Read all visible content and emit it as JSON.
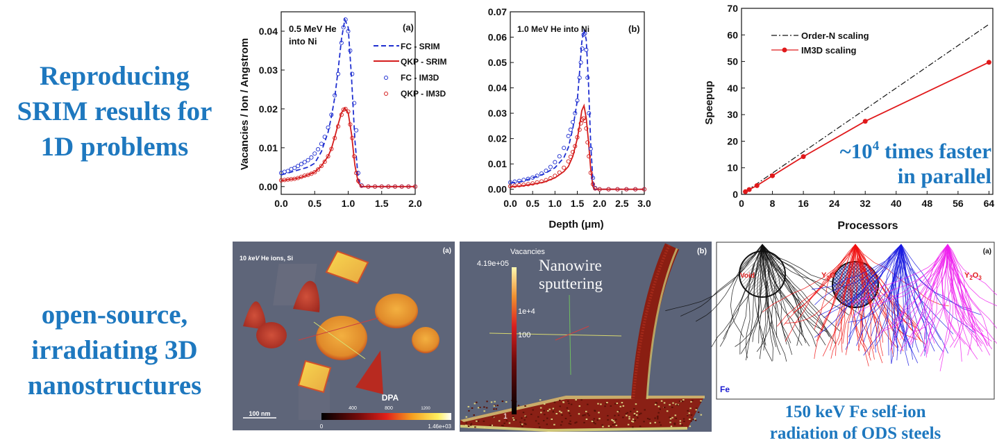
{
  "left_text": {
    "top": [
      "Reproducing",
      "SRIM results for",
      "1D problems"
    ],
    "bottom": [
      "open-source,",
      "irradiating 3D",
      "nanostructures"
    ]
  },
  "colors": {
    "title_blue": "#1e78bf",
    "fc": "#1f2fd0",
    "qkp": "#d41c1c",
    "order_n": "#111111",
    "im3d": "#e0191b",
    "render_bg": "#5e6579"
  },
  "chart_data": [
    {
      "type": "line",
      "panel": "(a)",
      "annotation": [
        "0.5 MeV He",
        "into Ni"
      ],
      "ylabel": "Vacancies / Ion / Angstrom",
      "xlabel": "",
      "xlim": [
        0,
        2.0
      ],
      "ylim": [
        -0.002,
        0.045
      ],
      "xticks": [
        "0.0",
        "0.5",
        "1.0",
        "1.5",
        "2.0"
      ],
      "yticks": [
        "0.00",
        "0.01",
        "0.02",
        "0.03",
        "0.04"
      ],
      "legend_placement": "top-right",
      "series": [
        {
          "name": "FC - SRIM",
          "style": "dashed",
          "color": "#1f2fd0",
          "x": [
            0,
            0.1,
            0.2,
            0.3,
            0.4,
            0.5,
            0.6,
            0.7,
            0.75,
            0.8,
            0.85,
            0.9,
            0.95,
            1.0,
            1.05,
            1.1,
            1.15,
            1.2,
            1.5,
            2.0
          ],
          "y": [
            0.003,
            0.0035,
            0.004,
            0.0045,
            0.005,
            0.006,
            0.009,
            0.014,
            0.018,
            0.023,
            0.03,
            0.038,
            0.043,
            0.041,
            0.028,
            0.012,
            0.002,
            0,
            0,
            0
          ]
        },
        {
          "name": "QKP - SRIM",
          "style": "solid",
          "color": "#d41c1c",
          "x": [
            0,
            0.1,
            0.2,
            0.3,
            0.4,
            0.5,
            0.6,
            0.7,
            0.75,
            0.8,
            0.85,
            0.9,
            0.95,
            1.0,
            1.05,
            1.1,
            1.15,
            1.2,
            1.5,
            2.0
          ],
          "y": [
            0.0015,
            0.0018,
            0.002,
            0.0024,
            0.003,
            0.0037,
            0.0053,
            0.0078,
            0.0098,
            0.0128,
            0.016,
            0.019,
            0.0202,
            0.019,
            0.0135,
            0.0055,
            0.001,
            0,
            0,
            0
          ]
        },
        {
          "name": "FC - IM3D",
          "style": "circles",
          "color": "#1f2fd0",
          "x": [
            0,
            0.05,
            0.1,
            0.15,
            0.2,
            0.25,
            0.3,
            0.35,
            0.4,
            0.45,
            0.5,
            0.55,
            0.6,
            0.65,
            0.7,
            0.75,
            0.8,
            0.85,
            0.9,
            0.93,
            0.96,
            1.0,
            1.03,
            1.06,
            1.09,
            1.12,
            1.15,
            1.2,
            1.3,
            1.4,
            1.5,
            1.6,
            1.7,
            1.8,
            1.9,
            2.0
          ],
          "y": [
            0.0035,
            0.0038,
            0.004,
            0.0045,
            0.0048,
            0.0053,
            0.0058,
            0.0063,
            0.0068,
            0.0075,
            0.0085,
            0.0096,
            0.011,
            0.0128,
            0.0152,
            0.0185,
            0.0235,
            0.029,
            0.037,
            0.041,
            0.043,
            0.04,
            0.035,
            0.029,
            0.0215,
            0.0145,
            0.0035,
            0.0003,
            0,
            0,
            0,
            0,
            0,
            0,
            0,
            0
          ]
        },
        {
          "name": "QKP - IM3D",
          "style": "circles",
          "color": "#d41c1c",
          "x": [
            0,
            0.05,
            0.1,
            0.15,
            0.2,
            0.25,
            0.3,
            0.35,
            0.4,
            0.45,
            0.5,
            0.55,
            0.6,
            0.65,
            0.7,
            0.75,
            0.8,
            0.85,
            0.9,
            0.93,
            0.96,
            1.0,
            1.03,
            1.06,
            1.09,
            1.12,
            1.15,
            1.2,
            1.3,
            1.4,
            1.5,
            1.6,
            1.7,
            1.8,
            1.9,
            2.0
          ],
          "y": [
            0.0016,
            0.0017,
            0.0018,
            0.0019,
            0.002,
            0.0022,
            0.0025,
            0.0028,
            0.003,
            0.0033,
            0.0037,
            0.0044,
            0.0053,
            0.0064,
            0.0078,
            0.0097,
            0.0125,
            0.0155,
            0.0185,
            0.0198,
            0.02,
            0.0193,
            0.016,
            0.0125,
            0.0078,
            0.0035,
            0.0015,
            0.0002,
            0,
            0,
            0,
            0,
            0,
            0,
            0,
            0
          ]
        }
      ]
    },
    {
      "type": "line",
      "panel": "(b)",
      "annotation": [
        "1.0 MeV He into Ni"
      ],
      "xlabel": "Depth (μm)",
      "ylabel": "",
      "xlim": [
        0,
        3.0
      ],
      "ylim": [
        -0.002,
        0.07
      ],
      "xticks": [
        "0.0",
        "0.5",
        "1.0",
        "1.5",
        "2.0",
        "2.5",
        "3.0"
      ],
      "yticks": [
        "0.00",
        "0.01",
        "0.02",
        "0.03",
        "0.04",
        "0.05",
        "0.06",
        "0.07"
      ],
      "series": [
        {
          "style": "dashed",
          "color": "#1f2fd0",
          "x": [
            0,
            0.25,
            0.5,
            0.75,
            1.0,
            1.2,
            1.3,
            1.4,
            1.5,
            1.55,
            1.6,
            1.65,
            1.7,
            1.75,
            1.8,
            1.85,
            1.9,
            2.0,
            3.0
          ],
          "y": [
            0.0025,
            0.003,
            0.0045,
            0.006,
            0.0085,
            0.0125,
            0.0165,
            0.024,
            0.035,
            0.046,
            0.058,
            0.063,
            0.059,
            0.042,
            0.018,
            0.003,
            0,
            0,
            0
          ]
        },
        {
          "style": "solid",
          "color": "#d41c1c",
          "x": [
            0,
            0.25,
            0.5,
            0.75,
            1.0,
            1.2,
            1.3,
            1.4,
            1.5,
            1.55,
            1.6,
            1.65,
            1.7,
            1.75,
            1.8,
            1.85,
            1.9,
            2.0,
            3.0
          ],
          "y": [
            0.001,
            0.0013,
            0.002,
            0.0028,
            0.0045,
            0.007,
            0.009,
            0.013,
            0.02,
            0.025,
            0.031,
            0.033,
            0.028,
            0.019,
            0.008,
            0.001,
            0,
            0,
            0
          ]
        },
        {
          "style": "circles",
          "color": "#1f2fd0",
          "x": [
            0,
            0.1,
            0.2,
            0.3,
            0.4,
            0.5,
            0.6,
            0.7,
            0.8,
            0.9,
            1.0,
            1.1,
            1.2,
            1.3,
            1.35,
            1.4,
            1.45,
            1.5,
            1.55,
            1.58,
            1.61,
            1.64,
            1.67,
            1.7,
            1.73,
            1.76,
            1.8,
            1.85,
            1.9,
            2.0,
            2.2,
            2.4,
            2.6,
            2.8,
            3.0
          ],
          "y": [
            0.0027,
            0.003,
            0.0033,
            0.0037,
            0.0041,
            0.0046,
            0.0053,
            0.0062,
            0.0073,
            0.0088,
            0.0107,
            0.013,
            0.0163,
            0.021,
            0.0235,
            0.0265,
            0.03,
            0.035,
            0.044,
            0.05,
            0.0555,
            0.061,
            0.0615,
            0.055,
            0.044,
            0.03,
            0.016,
            0.0045,
            0.0005,
            0,
            0,
            0,
            0,
            0,
            0
          ]
        },
        {
          "style": "circles",
          "color": "#d41c1c",
          "x": [
            0,
            0.1,
            0.2,
            0.3,
            0.4,
            0.5,
            0.6,
            0.7,
            0.8,
            0.9,
            1.0,
            1.1,
            1.2,
            1.3,
            1.35,
            1.4,
            1.45,
            1.5,
            1.55,
            1.58,
            1.61,
            1.64,
            1.67,
            1.7,
            1.73,
            1.76,
            1.8,
            1.85,
            1.9,
            2.0,
            2.2,
            2.4,
            2.6,
            2.8,
            3.0
          ],
          "y": [
            0.0012,
            0.0014,
            0.0016,
            0.0018,
            0.002,
            0.0023,
            0.0027,
            0.0031,
            0.0036,
            0.0043,
            0.0053,
            0.0066,
            0.0085,
            0.011,
            0.0128,
            0.0147,
            0.017,
            0.0205,
            0.0235,
            0.026,
            0.0275,
            0.028,
            0.027,
            0.024,
            0.0185,
            0.013,
            0.0065,
            0.002,
            0.0003,
            0,
            0,
            0,
            0,
            0,
            0
          ]
        }
      ]
    },
    {
      "type": "line",
      "xlabel": "Processors",
      "ylabel": "Speepup",
      "xlim": [
        0,
        65
      ],
      "ylim": [
        0,
        70
      ],
      "xticks": [
        "0",
        "8",
        "16",
        "24",
        "32",
        "40",
        "48",
        "56",
        "64"
      ],
      "yticks": [
        "0",
        "10",
        "20",
        "30",
        "40",
        "50",
        "60",
        "70"
      ],
      "legend_placement": "top-left",
      "annotation": {
        "line1": "~10",
        "sup": "4",
        "line1_rest": " times faster",
        "line2": "in parallel"
      },
      "series": [
        {
          "name": "Order-N scaling",
          "style": "dash-dot",
          "color": "#111111",
          "x": [
            1,
            64
          ],
          "y": [
            1,
            64
          ]
        },
        {
          "name": "IM3D scaling",
          "style": "line-markers",
          "color": "#e0191b",
          "x": [
            1,
            2,
            4,
            8,
            16,
            32,
            64
          ],
          "y": [
            1,
            1.8,
            3.3,
            7,
            14.2,
            27.5,
            49.7
          ]
        }
      ]
    }
  ],
  "render_a": {
    "title_num": "10 ",
    "title_unit": "keV",
    "title_rest": " He ions, Si",
    "panel": "(a)",
    "colorbar_title": "DPA",
    "colorbar_ticks": [
      "400",
      "800",
      "1200"
    ],
    "colorbar_min": "0",
    "colorbar_max": "1.46e+03",
    "scale_bar": "100 nm"
  },
  "render_b": {
    "colorbar_title": "Vacancies",
    "colorbar_max": "4.19e+05",
    "colorbar_ticks": [
      "1e+4",
      "100"
    ],
    "colorbar_min": "1",
    "overlay": [
      "Nanowire",
      "sputtering"
    ],
    "panel": "(b)"
  },
  "trajectories": {
    "panel": "(a)",
    "labels": {
      "void": "Void",
      "y2o_a": "Y",
      "y2o_a_sub": "2",
      "y2o_a_rest": "O",
      "y2o3_a": "Y",
      "y2o3_sub1": "2",
      "y2o3_b": "O",
      "y2o3_sub2": "3",
      "fe": "Fe"
    },
    "caption": [
      "150 keV Fe self-ion",
      "radiation of ODS steels"
    ]
  }
}
